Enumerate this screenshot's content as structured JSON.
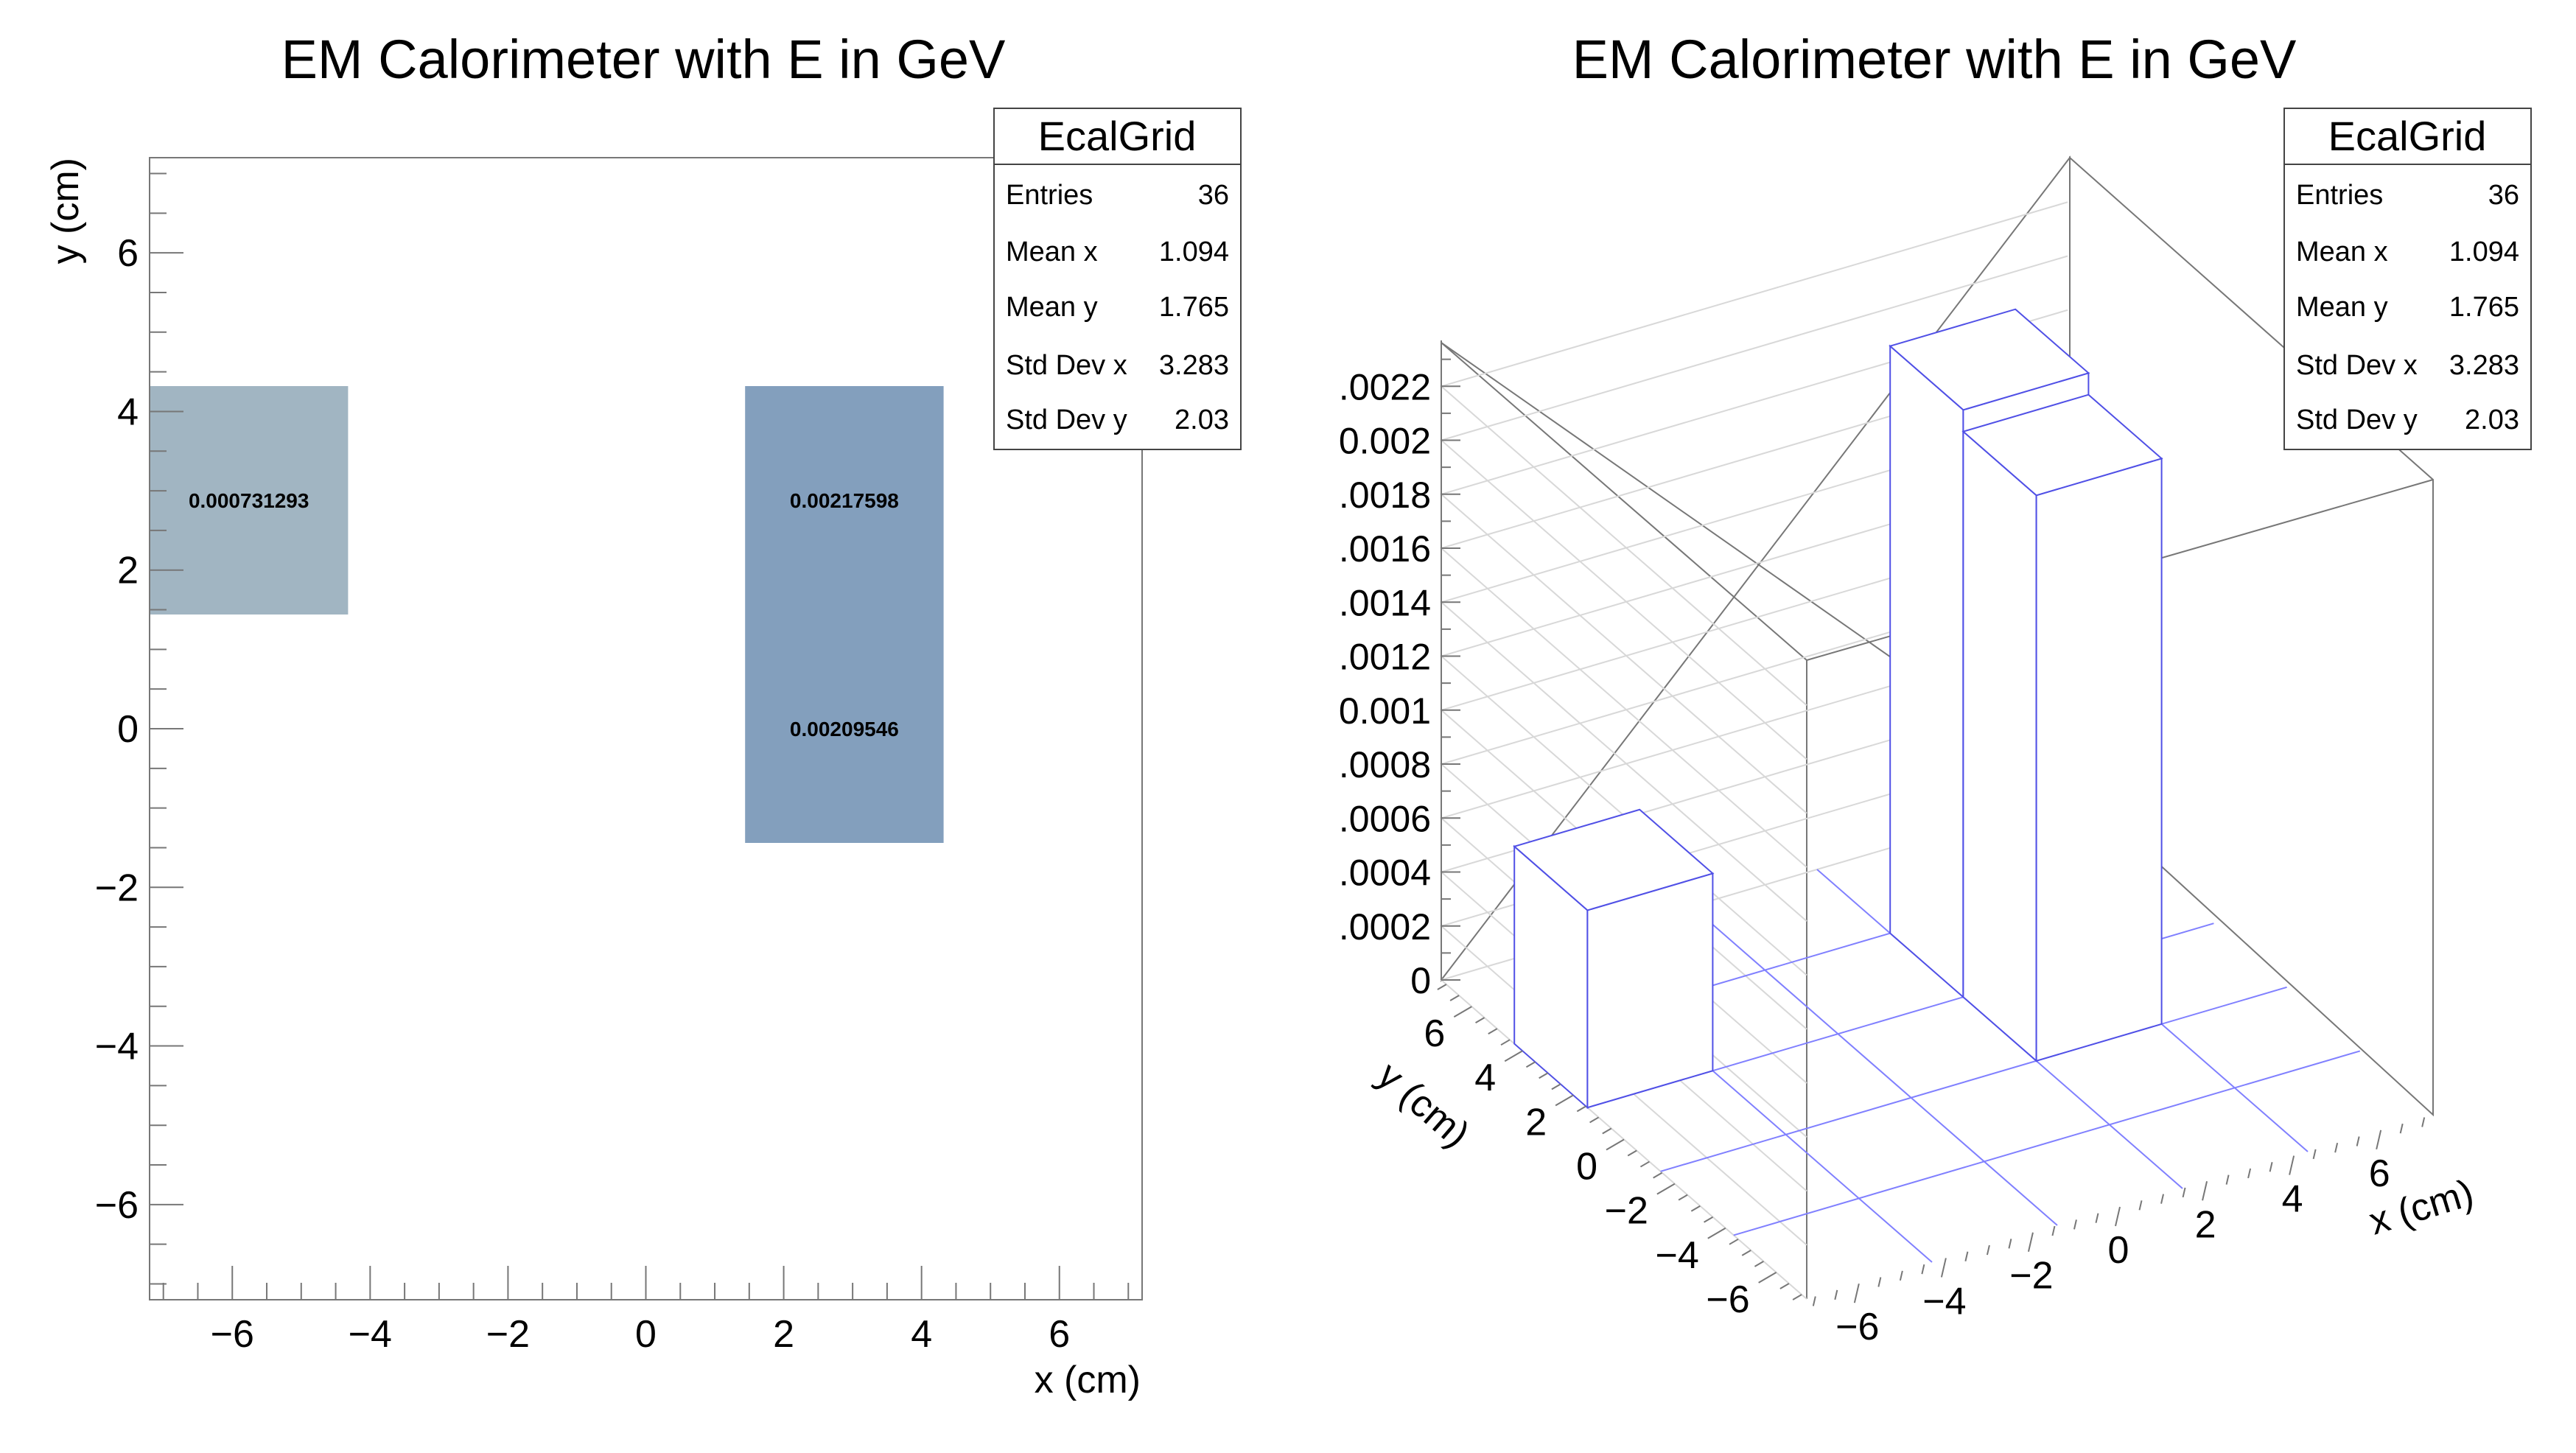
{
  "chart_data": [
    {
      "type": "heatmap",
      "title": "EM Calorimeter with E in GeV",
      "xlabel": "x (cm)",
      "ylabel": "y (cm)",
      "xlim": [
        -7.2,
        7.2
      ],
      "ylim": [
        -7.2,
        7.2
      ],
      "xticks": [
        "−6",
        "−4",
        "−2",
        "0",
        "2",
        "4",
        "6"
      ],
      "yticks": [
        "−6",
        "−4",
        "−2",
        "0",
        "2",
        "4",
        "6"
      ],
      "cells": [
        {
          "x0": -7.2,
          "x1": -4.32,
          "y0": 1.44,
          "y1": 4.32,
          "value": 0.000731293,
          "label": "0.000731293"
        },
        {
          "x0": 1.44,
          "x1": 4.32,
          "y0": 1.44,
          "y1": 4.32,
          "value": 0.00217598,
          "label": "0.00217598"
        },
        {
          "x0": 1.44,
          "x1": 4.32,
          "y0": -1.44,
          "y1": 1.44,
          "value": 0.00209546,
          "label": "0.00209546"
        }
      ],
      "colors": {
        "low": "#a1b5c2",
        "high": "#839fbd"
      },
      "stats": {
        "name": "EcalGrid",
        "rows": [
          {
            "label": "Entries",
            "value": "36"
          },
          {
            "label": "Mean x",
            "value": "1.094"
          },
          {
            "label": "Mean y",
            "value": "1.765"
          },
          {
            "label": "Std Dev x",
            "value": "3.283"
          },
          {
            "label": "Std Dev y",
            "value": "2.03"
          }
        ]
      }
    },
    {
      "type": "bar",
      "subtype": "lego",
      "title": "EM Calorimeter with E in GeV",
      "xlabel": "x (cm)",
      "ylabel": "y (cm)",
      "xlim": [
        -7.2,
        7.2
      ],
      "ylim": [
        -7.2,
        7.2
      ],
      "zlim": [
        0,
        0.00237
      ],
      "xticks": [
        "−6",
        "−4",
        "−2",
        "0",
        "2",
        "4",
        "6"
      ],
      "yticks": [
        "−6",
        "−4",
        "−2",
        "0",
        "2",
        "4",
        "6"
      ],
      "zticks": [
        ".0022",
        "0.002",
        ".0018",
        ".0016",
        ".0014",
        ".0012",
        "0.001",
        ".0008",
        ".0006",
        ".0004",
        ".0002",
        "0"
      ],
      "bars": [
        {
          "x0": -7.2,
          "x1": -4.32,
          "y0": 1.44,
          "y1": 4.32,
          "value": 0.000731293
        },
        {
          "x0": 1.44,
          "x1": 4.32,
          "y0": 1.44,
          "y1": 4.32,
          "value": 0.00217598
        },
        {
          "x0": 1.44,
          "x1": 4.32,
          "y0": -1.44,
          "y1": 1.44,
          "value": 0.00209546
        }
      ],
      "colors": {
        "bar_edge": "#5050e6"
      },
      "stats": {
        "name": "EcalGrid",
        "rows": [
          {
            "label": "Entries",
            "value": "36"
          },
          {
            "label": "Mean x",
            "value": "1.094"
          },
          {
            "label": "Mean y",
            "value": "1.765"
          },
          {
            "label": "Std Dev x",
            "value": "3.283"
          },
          {
            "label": "Std Dev y",
            "value": "2.03"
          }
        ]
      }
    }
  ]
}
